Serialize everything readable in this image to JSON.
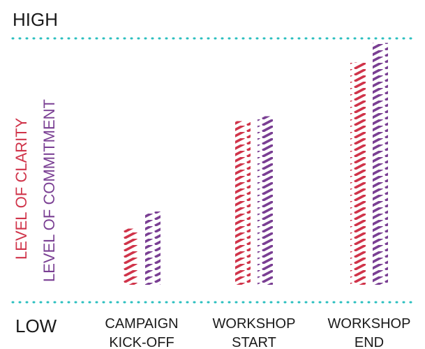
{
  "chart_data": {
    "type": "bar",
    "title": "",
    "xlabel": "",
    "ylabel": "",
    "y_high_label": "HIGH",
    "y_low_label": "LOW",
    "ylim": [
      0,
      100
    ],
    "grid": false,
    "categories": [
      {
        "line1": "CAMPAIGN",
        "line2": "KICK-OFF"
      },
      {
        "line1": "WORKSHOP",
        "line2": "START"
      },
      {
        "line1": "WORKSHOP",
        "line2": "END"
      }
    ],
    "series": [
      {
        "name": "LEVEL OF CLARITY",
        "color": "#d0344a",
        "values": [
          23,
          67,
          91
        ]
      },
      {
        "name": "LEVEL OF COMMITMENT",
        "color": "#7a3f93",
        "values": [
          30,
          69,
          99
        ]
      }
    ],
    "reference_line_color": "#2bbfbf"
  }
}
